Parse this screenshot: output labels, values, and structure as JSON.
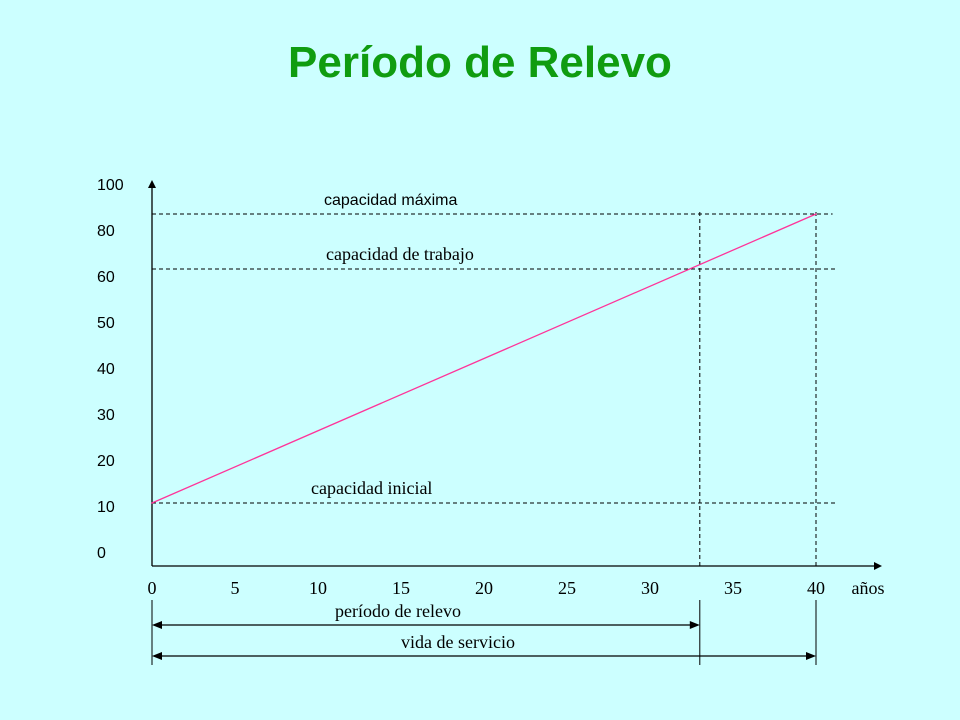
{
  "title": "Período de Relevo",
  "colors": {
    "background": "#ccffff",
    "title": "#109c10",
    "capacity_line": "#ff3399",
    "axes": "#000000"
  },
  "chart_data": {
    "type": "line",
    "title": "Período de Relevo",
    "xlabel": "años",
    "ylabel": "",
    "x_ticks": [
      "0",
      "5",
      "10",
      "15",
      "20",
      "25",
      "30",
      "35",
      "40"
    ],
    "y_ticks": [
      "0",
      "10",
      "20",
      "30",
      "40",
      "50",
      "60",
      "80",
      "100"
    ],
    "xlim": [
      0,
      42
    ],
    "ylim": [
      0,
      100
    ],
    "grid": false,
    "series": [
      {
        "name": "",
        "x": [
          0,
          40
        ],
        "y": [
          10,
          80
        ]
      }
    ],
    "reference_lines": [
      {
        "label": "capacidad máxima",
        "y": 80,
        "dashed": true
      },
      {
        "label": "capacidad de trabajo",
        "y": 60,
        "dashed": true
      },
      {
        "label": "capacidad inicial",
        "y": 10,
        "dashed": true
      }
    ],
    "vertical_lines": [
      {
        "x": 33,
        "dashed": true
      },
      {
        "x": 40,
        "dashed": true
      }
    ],
    "annotations": [
      {
        "label": "período de relevo",
        "from": 0,
        "to": 33
      },
      {
        "label": "vida de servicio",
        "from": 0,
        "to": 40
      }
    ]
  }
}
